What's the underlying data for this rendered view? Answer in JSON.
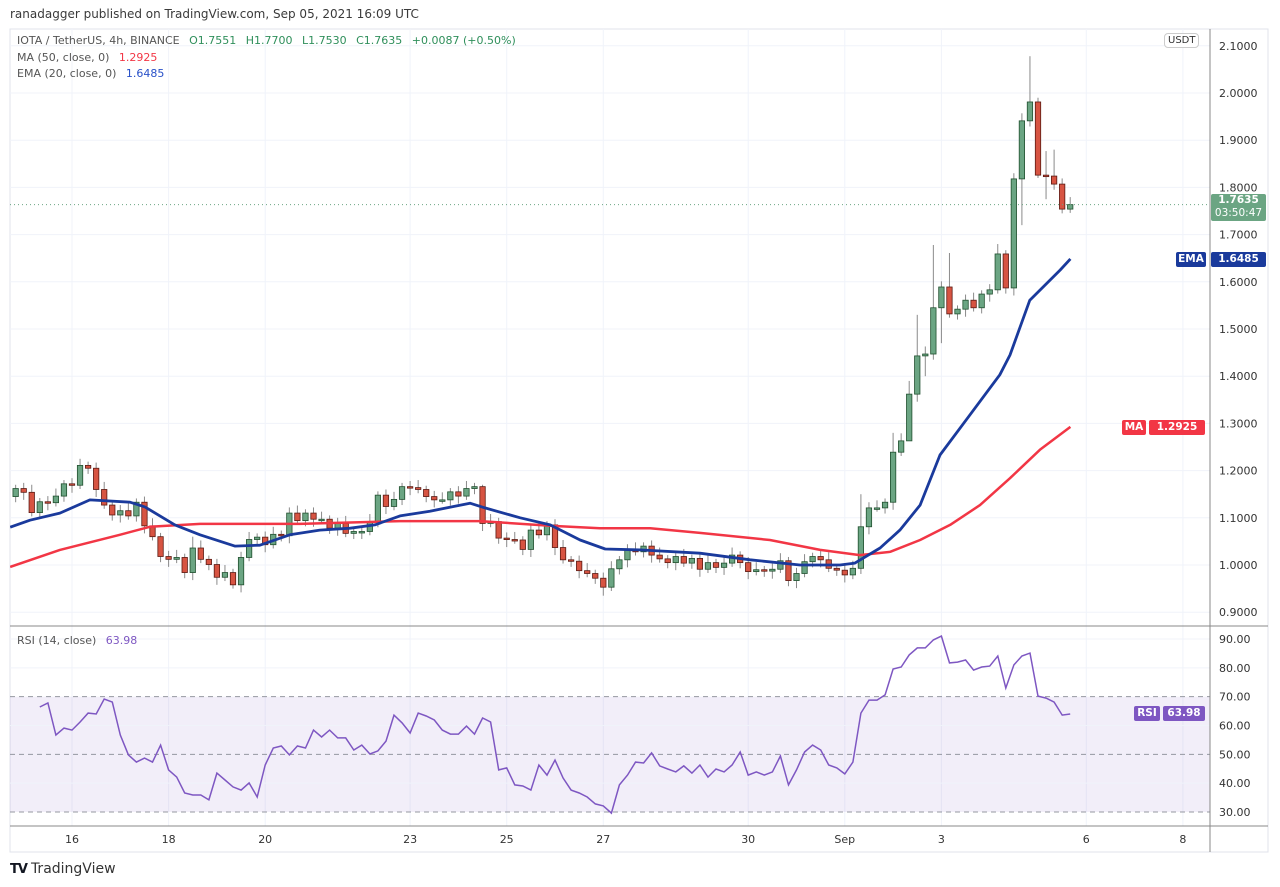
{
  "publish_line": "ranadagger published on TradingView.com, Sep 05, 2021 16:09 UTC",
  "legend": {
    "symbol": "IOTA / TetherUS, 4h, BINANCE",
    "open": "O1.7551",
    "high": "H1.7700",
    "low": "L1.7530",
    "close": "C1.7635",
    "change": "+0.0087 (+0.50%)",
    "ma_label": "MA (50, close, 0)",
    "ma_value": "1.2925",
    "ema_label": "EMA (20, close, 0)",
    "ema_value": "1.6485",
    "rsi_label": "RSI (14, close)",
    "rsi_value": "63.98"
  },
  "currency_button": "USDT",
  "badges": {
    "last_price": "1.7635",
    "countdown": "03:50:47",
    "ema_tag": "EMA",
    "ema_value": "1.6485",
    "ma_tag": "MA",
    "ma_value": "1.2925",
    "rsi_tag": "RSI",
    "rsi_value": "63.98"
  },
  "branding": "TradingView",
  "colors": {
    "up": "#6ba583",
    "down": "#d75442",
    "ema": "#1a3a9c",
    "ma": "#f23645",
    "rsi": "#7e57c2"
  },
  "chart_data": {
    "type": "candlestick",
    "title": "IOTA / TetherUS, 4h, BINANCE",
    "interval_hours": 4,
    "last_candle_day": 36.6667,
    "first_open": 1.145,
    "closes": [
      1.162,
      1.154,
      1.111,
      1.134,
      1.132,
      1.146,
      1.172,
      1.169,
      1.211,
      1.205,
      1.16,
      1.127,
      1.106,
      1.115,
      1.104,
      1.133,
      1.083,
      1.06,
      1.018,
      1.012,
      1.016,
      0.984,
      1.036,
      1.012,
      1.001,
      0.974,
      0.984,
      0.958,
      1.016,
      1.054,
      1.059,
      1.043,
      1.065,
      1.062,
      1.11,
      1.094,
      1.11,
      1.097,
      1.097,
      1.078,
      1.088,
      1.067,
      1.071,
      1.071,
      1.092,
      1.148,
      1.124,
      1.139,
      1.166,
      1.164,
      1.16,
      1.145,
      1.138,
      1.138,
      1.155,
      1.146,
      1.162,
      1.166,
      1.088,
      1.092,
      1.057,
      1.054,
      1.053,
      1.033,
      1.074,
      1.064,
      1.085,
      1.037,
      1.011,
      1.008,
      0.988,
      0.982,
      0.972,
      0.953,
      0.992,
      1.011,
      1.032,
      1.028,
      1.04,
      1.021,
      1.013,
      1.005,
      1.018,
      1.004,
      1.014,
      0.991,
      1.005,
      0.995,
      1.004,
      1.021,
      1.005,
      0.986,
      0.99,
      0.987,
      0.991,
      1.009,
      0.967,
      0.982,
      1.007,
      1.018,
      1.011,
      0.993,
      0.989,
      0.979,
      0.993,
      1.081,
      1.121,
      1.121,
      1.133,
      1.239,
      1.263,
      1.362,
      1.443,
      1.447,
      1.545,
      1.589,
      1.532,
      1.542,
      1.561,
      1.545,
      1.574,
      1.583,
      1.659,
      1.587,
      1.818,
      1.941,
      1.981,
      1.826,
      1.824,
      1.807,
      1.754,
      1.7635
    ],
    "high_overrides": {
      "8": 1.225,
      "22": 1.06,
      "58": 1.17,
      "105": 1.15,
      "109": 1.28,
      "111": 1.39,
      "112": 1.53,
      "114": 1.678,
      "116": 1.661,
      "122": 1.68,
      "124": 1.83,
      "126": 2.078,
      "127": 1.99,
      "128": 1.877,
      "129": 1.88
    },
    "low_overrides": {
      "27": 0.95,
      "73": 0.935,
      "96": 0.955,
      "104": 0.97,
      "111": 1.32,
      "113": 1.4,
      "115": 1.47,
      "125": 1.72,
      "127": 1.82,
      "128": 1.775,
      "130": 1.745
    },
    "ema20": [
      [
        14.72,
        1.08
      ],
      [
        15.13,
        1.095
      ],
      [
        15.75,
        1.11
      ],
      [
        16.37,
        1.138
      ],
      [
        17.2,
        1.133
      ],
      [
        17.51,
        1.123
      ],
      [
        18.13,
        1.085
      ],
      [
        18.65,
        1.064
      ],
      [
        19.37,
        1.04
      ],
      [
        19.89,
        1.042
      ],
      [
        20.51,
        1.064
      ],
      [
        21.13,
        1.074
      ],
      [
        21.76,
        1.078
      ],
      [
        22.27,
        1.085
      ],
      [
        22.79,
        1.104
      ],
      [
        23.41,
        1.114
      ],
      [
        24.24,
        1.131
      ],
      [
        24.55,
        1.121
      ],
      [
        25.28,
        1.1
      ],
      [
        25.9,
        1.085
      ],
      [
        26.52,
        1.053
      ],
      [
        27.04,
        1.034
      ],
      [
        27.76,
        1.032
      ],
      [
        29.0,
        1.025
      ],
      [
        30.04,
        1.011
      ],
      [
        31.07,
        1.0
      ],
      [
        31.9,
        1.0
      ],
      [
        32.21,
        1.004
      ],
      [
        32.73,
        1.036
      ],
      [
        33.14,
        1.074
      ],
      [
        33.56,
        1.127
      ],
      [
        33.97,
        1.233
      ],
      [
        34.59,
        1.318
      ],
      [
        35.21,
        1.403
      ],
      [
        35.42,
        1.445
      ],
      [
        35.83,
        1.561
      ],
      [
        36.46,
        1.625
      ],
      [
        36.67,
        1.6485
      ]
    ],
    "ma50": [
      [
        14.72,
        0.996
      ],
      [
        15.75,
        1.032
      ],
      [
        16.99,
        1.064
      ],
      [
        17.61,
        1.081
      ],
      [
        18.65,
        1.087
      ],
      [
        20.72,
        1.087
      ],
      [
        22.79,
        1.093
      ],
      [
        24.45,
        1.093
      ],
      [
        25.9,
        1.083
      ],
      [
        26.93,
        1.078
      ],
      [
        27.97,
        1.078
      ],
      [
        29.0,
        1.068
      ],
      [
        30.45,
        1.053
      ],
      [
        31.49,
        1.032
      ],
      [
        32.31,
        1.021
      ],
      [
        32.94,
        1.028
      ],
      [
        33.56,
        1.053
      ],
      [
        34.18,
        1.085
      ],
      [
        34.8,
        1.127
      ],
      [
        35.42,
        1.184
      ],
      [
        36.04,
        1.244
      ],
      [
        36.67,
        1.2925
      ]
    ],
    "rsi14": [
      66.4,
      67.8,
      56.7,
      59.1,
      58.4,
      61.2,
      64.3,
      64.0,
      69.2,
      68.1,
      56.7,
      49.8,
      47.3,
      48.7,
      47.3,
      53.2,
      44.6,
      42.1,
      36.6,
      35.9,
      35.9,
      34.2,
      43.5,
      41.1,
      38.7,
      37.6,
      40.1,
      35.2,
      46.3,
      52.2,
      52.9,
      49.8,
      52.9,
      52.2,
      58.4,
      56.0,
      58.4,
      55.7,
      55.7,
      51.5,
      53.2,
      50.1,
      51.2,
      54.6,
      63.6,
      60.9,
      57.4,
      64.3,
      63.3,
      61.9,
      58.4,
      57.0,
      57.0,
      59.8,
      57.0,
      62.6,
      61.2,
      44.6,
      45.3,
      39.4,
      39.0,
      37.6,
      46.3,
      42.8,
      48.0,
      41.8,
      37.6,
      36.6,
      35.2,
      32.8,
      32.1,
      29.6,
      39.4,
      42.8,
      47.3,
      47.0,
      50.5,
      46.0,
      44.9,
      43.9,
      46.0,
      43.5,
      46.3,
      42.1,
      44.9,
      43.9,
      46.3,
      50.8,
      42.8,
      43.9,
      42.8,
      43.9,
      49.4,
      39.4,
      44.6,
      50.8,
      53.2,
      51.5,
      46.3,
      45.3,
      43.2,
      47.3,
      64.3,
      68.8,
      68.8,
      70.6,
      79.6,
      80.3,
      84.5,
      86.9,
      86.9,
      89.7,
      91.0,
      81.7,
      82.0,
      82.7,
      79.2,
      80.3,
      80.6,
      84.1,
      73.0,
      81.0,
      84.1,
      85.1,
      70.2,
      69.5,
      68.1,
      63.6,
      63.98
    ],
    "price_axis": {
      "ylim": [
        0.9,
        2.1
      ],
      "ticks": [
        "0.9000",
        "1.0000",
        "1.1000",
        "1.2000",
        "1.3000",
        "1.4000",
        "1.5000",
        "1.6000",
        "1.7000",
        "1.8000",
        "1.9000",
        "2.0000",
        "2.1000"
      ]
    },
    "rsi_axis": {
      "ylim": [
        25,
        95
      ],
      "ticks": [
        "30.00",
        "40.00",
        "50.00",
        "60.00",
        "70.00",
        "80.00",
        "90.00"
      ],
      "band": [
        30,
        70
      ]
    },
    "time_ticks": [
      {
        "label": "16",
        "day": 16
      },
      {
        "label": "18",
        "day": 18
      },
      {
        "label": "20",
        "day": 20
      },
      {
        "label": "23",
        "day": 23
      },
      {
        "label": "25",
        "day": 25
      },
      {
        "label": "27",
        "day": 27
      },
      {
        "label": "30",
        "day": 30
      },
      {
        "label": "Sep",
        "day": 32
      },
      {
        "label": "3",
        "day": 34
      },
      {
        "label": "6",
        "day": 37
      },
      {
        "label": "8",
        "day": 39
      }
    ],
    "grid": true
  }
}
